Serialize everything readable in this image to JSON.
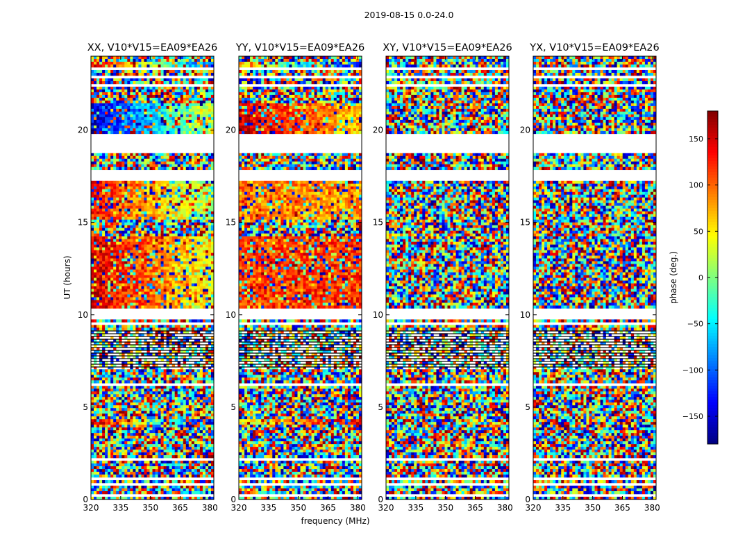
{
  "chart_data": {
    "type": "heatmap",
    "figure_title": "2019-08-15 0.0-24.0",
    "xlabel": "frequency (MHz)",
    "ylabel": "UT (hours)",
    "xlim": [
      320,
      382
    ],
    "ylim": [
      0,
      24
    ],
    "x_ticks": [
      320,
      335,
      350,
      365,
      380
    ],
    "y_ticks": [
      0,
      5,
      10,
      15,
      20
    ],
    "colorbar": {
      "label": "phase (deg.)",
      "range": [
        -180,
        180
      ],
      "ticks": [
        150,
        100,
        50,
        0,
        -50,
        -100,
        -150
      ],
      "tick_labels": [
        "150",
        "100",
        "50",
        "0",
        "−50",
        "−100",
        "−150"
      ],
      "colormap": "jet"
    },
    "panels": [
      {
        "title": "XX, V10*V15=EA09*EA26",
        "polarization": "XX"
      },
      {
        "title": "YY, V10*V15=EA09*EA26",
        "polarization": "YY"
      },
      {
        "title": "XY, V10*V15=EA09*EA26",
        "polarization": "XY"
      },
      {
        "title": "YX, V10*V15=EA09*EA26",
        "polarization": "YX"
      }
    ],
    "blank_ut_intervals": [
      [
        0.2,
        0.3
      ],
      [
        0.75,
        0.85
      ],
      [
        1.1,
        1.2
      ],
      [
        2.1,
        2.25
      ],
      [
        3.0,
        3.05
      ],
      [
        4.6,
        4.65
      ],
      [
        5.1,
        5.15
      ],
      [
        6.2,
        6.25
      ],
      [
        9.5,
        9.6
      ],
      [
        9.8,
        10.35
      ],
      [
        17.3,
        17.8
      ],
      [
        18.8,
        19.8
      ],
      [
        22.3,
        22.45
      ],
      [
        22.75,
        22.95
      ],
      [
        23.3,
        23.35
      ]
    ],
    "dark_ut_intervals": [
      [
        7.0,
        9.1
      ]
    ],
    "coherent_phase_bands": [
      {
        "ut": [
          23.2,
          23.7
        ],
        "XX": [
          140,
          -120
        ],
        "YY": [
          60,
          -150
        ]
      },
      {
        "ut": [
          19.8,
          21.5
        ],
        "XX": [
          -150,
          40
        ],
        "YY": [
          150,
          60
        ]
      },
      {
        "ut": [
          15.2,
          17.3
        ],
        "XX": [
          130,
          0
        ],
        "YY": [
          90,
          80
        ]
      },
      {
        "ut": [
          10.4,
          14.2
        ],
        "XX": [
          150,
          40
        ],
        "YY": [
          110,
          120
        ]
      },
      {
        "ut": [
          4.0,
          4.35
        ],
        "XX": [
          150,
          -150
        ],
        "YY": [
          30,
          150
        ]
      }
    ]
  }
}
